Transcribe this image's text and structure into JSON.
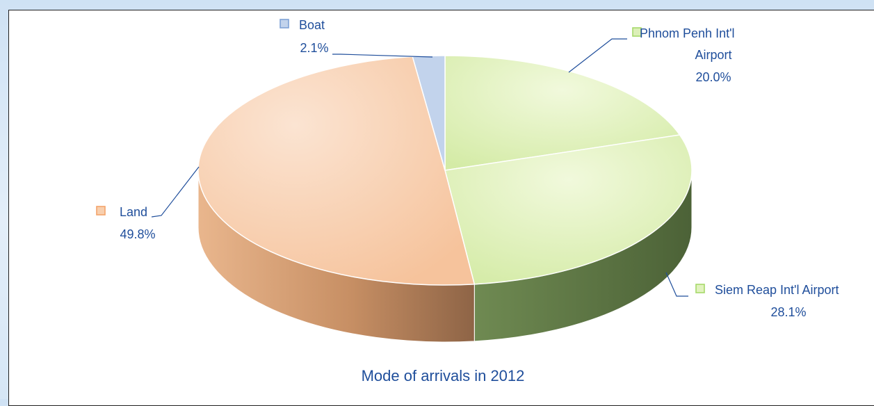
{
  "chart_data": {
    "type": "pie",
    "title": "Mode of arrivals in 2012",
    "slices": [
      {
        "name": "Phnom Penh Int'l Airport",
        "name_lines": [
          "Phnom Penh Int'l",
          "Airport"
        ],
        "value": 20.0,
        "label": "20.0%",
        "color": "#dcefb8"
      },
      {
        "name": "Siem Reap Int'l Airport",
        "name_lines": [
          "Siem Reap Int'l Airport"
        ],
        "value": 28.1,
        "label": "28.1%",
        "color": "#e1f2be"
      },
      {
        "name": "Land",
        "name_lines": [
          "Land"
        ],
        "value": 49.8,
        "label": "49.8%",
        "color": "#f8cfae"
      },
      {
        "name": "Boat",
        "name_lines": [
          "Boat"
        ],
        "value": 2.1,
        "label": "2.1%",
        "color": "#c2d3ec"
      }
    ],
    "legend": "none",
    "colors": {
      "text": "#1f4e9b",
      "leader": "#1f4e9b",
      "side_green": "#5e7a47",
      "side_orange": "#b9855f",
      "marker_green": "#a6d96a",
      "marker_orange": "#f4a36a",
      "marker_blue": "#7fa2d6"
    }
  }
}
